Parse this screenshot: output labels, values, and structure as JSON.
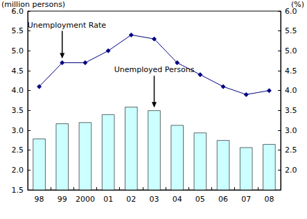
{
  "chart_data": {
    "type": "bar",
    "categories": [
      "98",
      "99",
      "2000",
      "01",
      "02",
      "03",
      "04",
      "05",
      "06",
      "07",
      "08"
    ],
    "series": [
      {
        "name": "Unemployed Persons",
        "type": "bar",
        "axis": "y",
        "color": "#ccffff",
        "values": [
          2.79,
          3.17,
          3.2,
          3.4,
          3.59,
          3.5,
          3.13,
          2.94,
          2.75,
          2.57,
          2.65
        ]
      },
      {
        "name": "Unemployment Rate",
        "type": "line",
        "axis": "y2",
        "color": "#000080",
        "marker": "diamond",
        "values": [
          4.1,
          4.7,
          4.7,
          5.0,
          5.4,
          5.3,
          4.7,
          4.4,
          4.1,
          3.9,
          4.0
        ]
      }
    ],
    "ylabel": "(million persons)",
    "y2label": "(%)",
    "ylim": [
      1.5,
      6.0
    ],
    "yticks": [
      1.5,
      {
        "value": 2,
        "label": "2.0"
      },
      2.5,
      {
        "value": 3,
        "label": "3.0"
      },
      3.5,
      {
        "value": 4,
        "label": "4.0"
      },
      4.5,
      {
        "value": 5,
        "label": "5.0"
      },
      5.5,
      {
        "value": 6,
        "label": "6.0"
      }
    ],
    "y2lim": [
      1.5,
      6.0
    ],
    "y2ticks": [
      {
        "value": 2,
        "label": "2.0"
      },
      2.5,
      {
        "value": 3,
        "label": "3.0"
      },
      3.5,
      {
        "value": 4,
        "label": "4.0"
      },
      4.5,
      {
        "value": 5,
        "label": "5.0"
      },
      5.5,
      {
        "value": 6,
        "label": "6.0"
      }
    ],
    "annotations": [
      {
        "text": "Unemployment Rate",
        "series": "Unemployment Rate",
        "category": "99"
      },
      {
        "text": "Unemployed Persons",
        "series": "Unemployed Persons",
        "category": "03"
      }
    ],
    "grid": false
  }
}
